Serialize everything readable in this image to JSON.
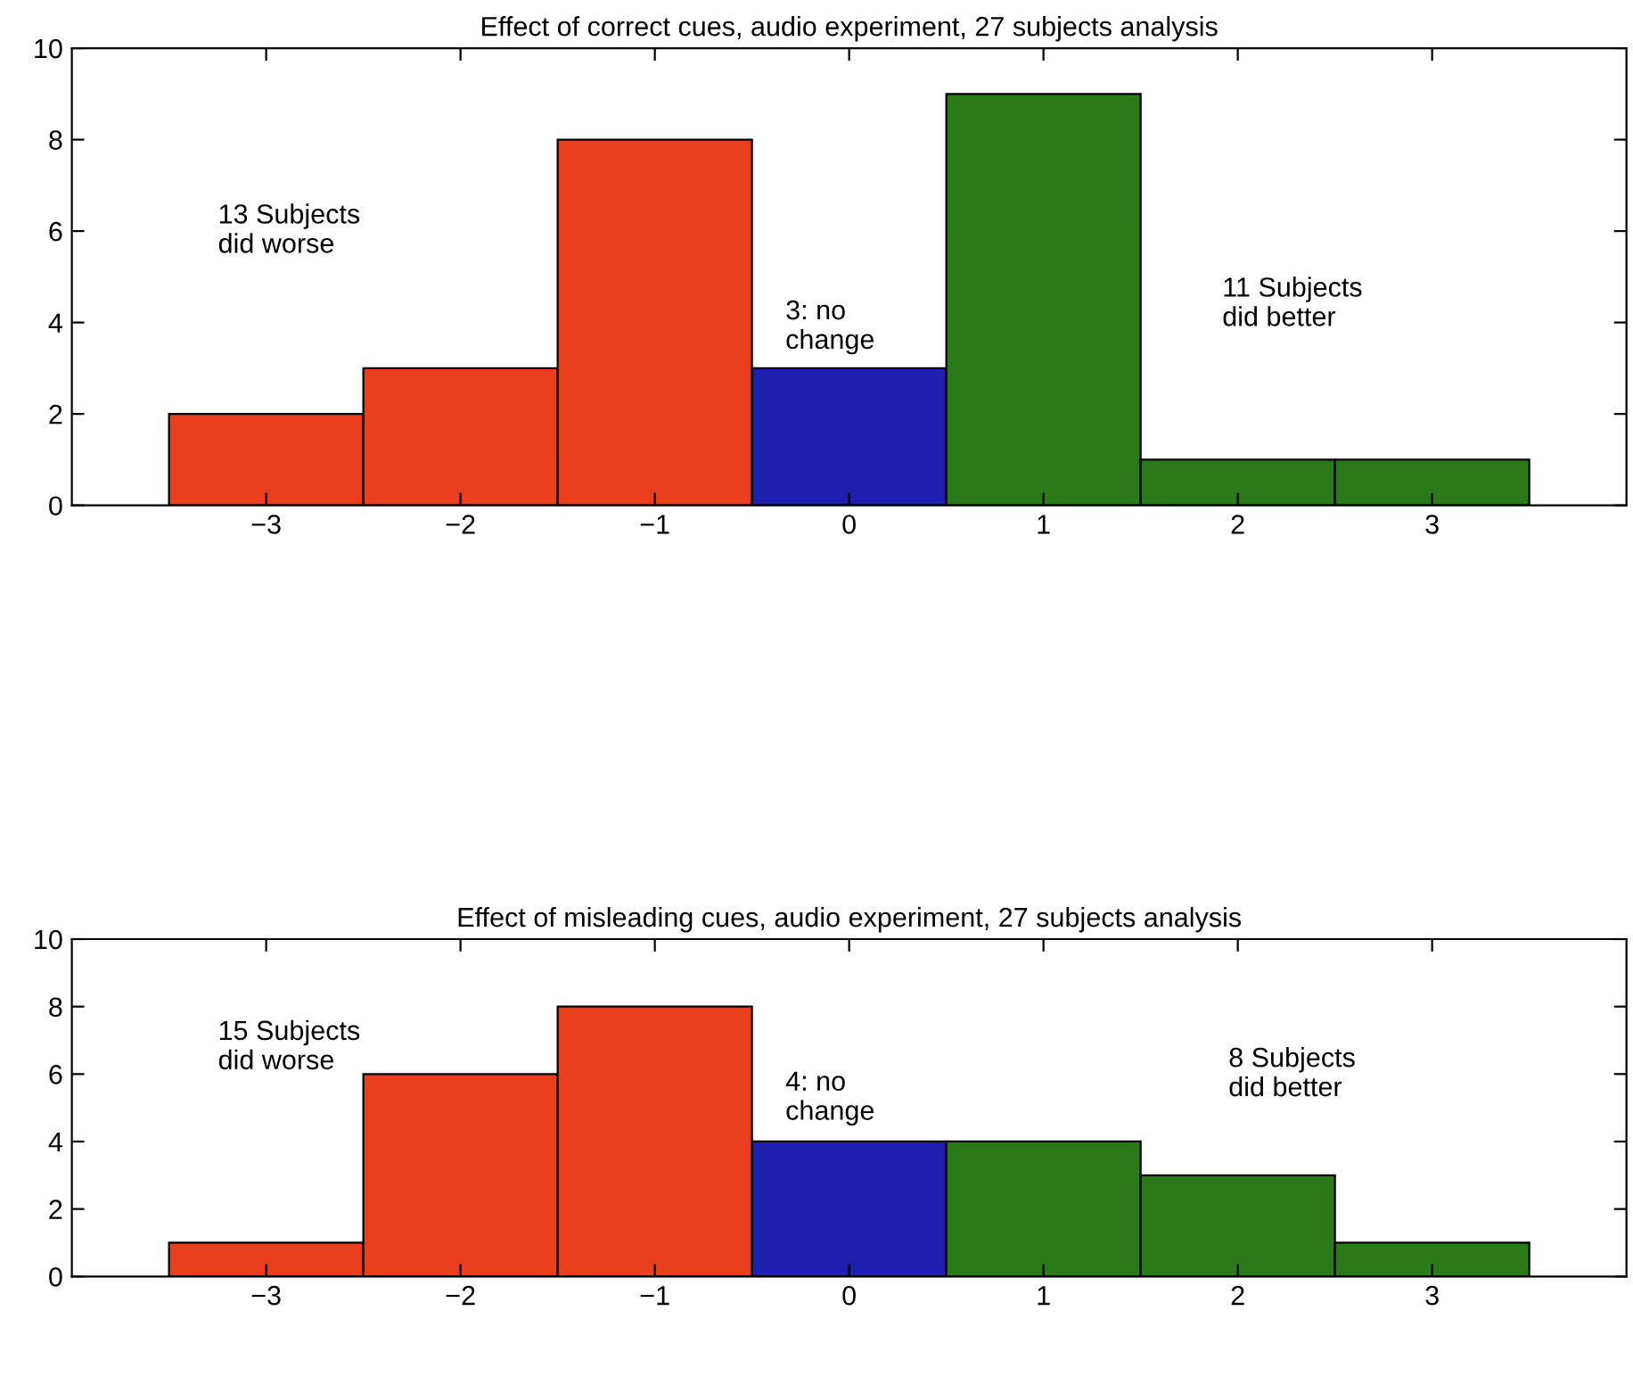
{
  "chart_data": [
    {
      "type": "histogram",
      "title": "Effect of correct cues, audio experiment, 27 subjects analysis",
      "bins": [
        -3.5,
        -2.5,
        -1.5,
        -0.5,
        0.5,
        1.5,
        2.5,
        3.5
      ],
      "values": [
        2,
        3,
        8,
        3,
        9,
        1,
        1
      ],
      "colors": [
        "#e8401c",
        "#e8401c",
        "#e8401c",
        "#1f1fb0",
        "#2a7a1a",
        "#2a7a1a",
        "#2a7a1a"
      ],
      "xlim": [
        -4,
        4
      ],
      "xticks": [
        {
          "value": -3,
          "label": "−3"
        },
        {
          "value": -2,
          "label": "−2"
        },
        {
          "value": -1,
          "label": "−1"
        },
        0,
        1,
        2,
        3
      ],
      "ylim": [
        0,
        10
      ],
      "yticks": [
        0,
        2,
        4,
        6,
        8,
        10
      ],
      "grid": false,
      "annotations": [
        "13 Subjects\ndid worse",
        "3: no\nchange",
        "11 Subjects\ndid better"
      ]
    },
    {
      "type": "histogram",
      "title": "Effect of misleading cues, audio experiment, 27 subjects analysis",
      "bins": [
        -3.5,
        -2.5,
        -1.5,
        -0.5,
        0.5,
        1.5,
        2.5,
        3.5
      ],
      "values": [
        1,
        6,
        8,
        4,
        4,
        3,
        1
      ],
      "colors": [
        "#e8401c",
        "#e8401c",
        "#e8401c",
        "#1f1fb0",
        "#2a7a1a",
        "#2a7a1a",
        "#2a7a1a"
      ],
      "xlim": [
        -4,
        4
      ],
      "xticks": [
        {
          "value": -3,
          "label": "−3"
        },
        {
          "value": -2,
          "label": "−2"
        },
        {
          "value": -1,
          "label": "−1"
        },
        0,
        1,
        2,
        3
      ],
      "ylim": [
        0,
        10
      ],
      "yticks": [
        0,
        2,
        4,
        6,
        8,
        10
      ],
      "grid": false,
      "annotations": [
        "15 Subjects\ndid worse",
        "4: no\nchange",
        "8 Subjects\ndid better"
      ]
    }
  ]
}
